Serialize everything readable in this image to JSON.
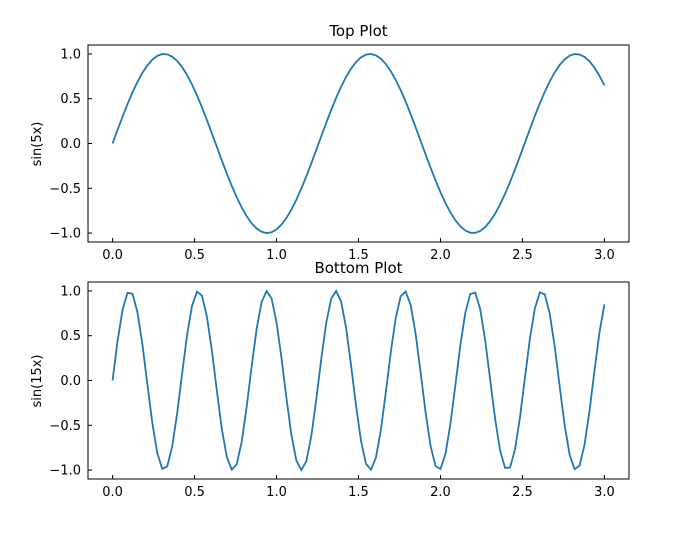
{
  "chart_data": [
    {
      "type": "line",
      "title": "Top Plot",
      "xlabel": "",
      "ylabel": "sin(5x)",
      "function": "sin(5x)",
      "xlim": [
        -0.15,
        3.15
      ],
      "ylim": [
        -1.1,
        1.1
      ],
      "x_range": [
        0,
        3
      ],
      "num_points": 100,
      "xticks": [
        0.0,
        0.5,
        1.0,
        1.5,
        2.0,
        2.5,
        3.0
      ],
      "xtick_labels": [
        "0.0",
        "0.5",
        "1.0",
        "1.5",
        "2.0",
        "2.5",
        "3.0"
      ],
      "yticks": [
        1.0,
        0.5,
        0.0,
        -0.5,
        -1.0
      ],
      "ytick_labels": [
        "1.0",
        "0.5",
        "0.0",
        "−0.5",
        "−1.0"
      ],
      "grid": false,
      "series": [
        {
          "color": "#1f77b4"
        }
      ]
    },
    {
      "type": "line",
      "title": "Bottom Plot",
      "xlabel": "",
      "ylabel": "sin(15x)",
      "function": "sin(15x)",
      "xlim": [
        -0.15,
        3.15
      ],
      "ylim": [
        -1.1,
        1.1
      ],
      "x_range": [
        0,
        3
      ],
      "num_points": 100,
      "xticks": [
        0.0,
        0.5,
        1.0,
        1.5,
        2.0,
        2.5,
        3.0
      ],
      "xtick_labels": [
        "0.0",
        "0.5",
        "1.0",
        "1.5",
        "2.0",
        "2.5",
        "3.0"
      ],
      "yticks": [
        1.0,
        0.5,
        0.0,
        -0.5,
        -1.0
      ],
      "ytick_labels": [
        "1.0",
        "0.5",
        "0.0",
        "−0.5",
        "−1.0"
      ],
      "grid": false,
      "series": [
        {
          "color": "#1f77b4"
        }
      ]
    }
  ]
}
